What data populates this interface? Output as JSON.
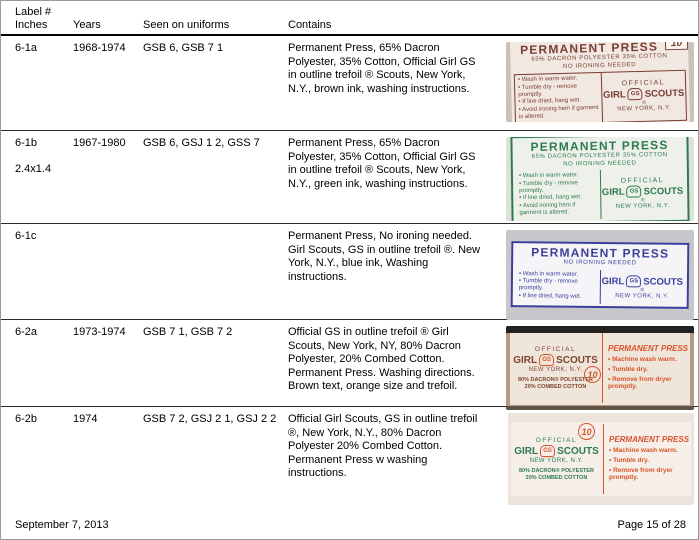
{
  "header": {
    "col_label_line1": "Label #",
    "col_label_line2": "Inches",
    "col_years": "Years",
    "col_uniforms": "Seen on uniforms",
    "col_contains": "Contains"
  },
  "rows": [
    {
      "label_id": "6-1a",
      "years": "1968-1974",
      "uniforms": "GSB 6, GSB 7 1",
      "contains": "Permanent Press, 65% Dacron Polyester, 35% Cotton, Official Girl GS in outline trefoil ® Scouts, New York, N.Y., brown ink, washing instructions.",
      "tag": {
        "ink": "#7a3c32",
        "label_bg": "#f1e8e1",
        "photo_bg": "#ccc1b8",
        "size_badge": "10",
        "title": "PERMANENT PRESS",
        "fiber_line": "65% DACRON POLYESTER 35% COTTON",
        "no_iron": "NO IRONING NEEDED",
        "bullets": [
          "Wash in warm water.",
          "Tumble dry - remove promptly.",
          "If line dried, hang wet.",
          "Avoid ironing hem if garment is altered."
        ],
        "official": "OFFICIAL",
        "girl": "GIRL",
        "gs": "GS",
        "scouts": "SCOUTS",
        "reg": "®",
        "city": "NEW YORK, N.Y."
      }
    },
    {
      "label_id": "6-1b",
      "inches": "2.4x1.4",
      "years": "1967-1980",
      "uniforms": "GSB 6, GSJ 1 2, GSS 7",
      "contains": "Permanent Press, 65% Dacron Polyester, 35% Cotton, Official Girl GS in outline trefoil ® Scouts, New York, N.Y., green ink, washing instructions.",
      "tag": {
        "ink": "#2e7a50",
        "label_bg": "#eef1ea",
        "photo_bg": "#dde2d8",
        "title": "PERMANENT PRESS",
        "fiber_line": "65% DACRON POLYESTER 35% COTTON",
        "no_iron": "NO IRONING NEEDED",
        "bullets": [
          "Wash in warm water.",
          "Tumble dry - remove promptly.",
          "If line dried, hang wet.",
          "Avoid ironing hem if garment is altered."
        ],
        "official": "OFFICIAL",
        "girl": "GIRL",
        "gs": "GS",
        "scouts": "SCOUTS",
        "reg": "®",
        "city": "NEW YORK, N.Y."
      }
    },
    {
      "label_id": "6-1c",
      "contains": "Permanent Press, No ironing needed. Girl Scouts, GS in outline trefoil ®. New York, N.Y., blue ink, Washing instructions.",
      "tag": {
        "ink": "#3b3f9c",
        "label_bg": "#f5f5f7",
        "photo_bg": "#c7c7cb",
        "title": "PERMANENT PRESS",
        "no_iron": "NO IRONING NEEDED",
        "bullets": [
          "Wash in warm water.",
          "Tumble dry - remove promptly.",
          "If line dried, hang wet."
        ],
        "girl": "GIRL",
        "gs": "GS",
        "scouts": "SCOUTS",
        "reg": "®",
        "city": "NEW YORK, N.Y."
      }
    },
    {
      "label_id": "6-2a",
      "years": "1973-1974",
      "uniforms": "GSB 7 1, GSB 7 2",
      "contains": "Official GS in outline trefoil ® Girl Scouts, New York, NY, 80% Dacron Polyester, 20% Combed Cotton. Permanent Press. Washing directions. Brown text, orange size and trefoil.",
      "tag": {
        "ink": "#7d442f",
        "accent": "#d8542b",
        "label_bg": "#f0e5da",
        "photo_bg": "#b29a85",
        "size_badge": "10",
        "official": "OFFICIAL",
        "girl": "GIRL",
        "gs": "GS",
        "scouts": "SCOUTS",
        "city": "NEW YORK, N.Y.",
        "fiber_line1": "80% DACRON® POLYESTER",
        "fiber_line2": "20% COMBED COTTON",
        "pp_title": "PERMANENT PRESS",
        "bullets": [
          "Machine wash warm.",
          "Tumble dry.",
          "Remove from dryer promptly."
        ]
      }
    },
    {
      "label_id": "6-2b",
      "years": "1974",
      "uniforms": "GSB 7 2, GSJ 2 1, GSJ 2 2",
      "contains": "Official Girl Scouts, GS in outline trefoil ®, New York, N.Y., 80% Dacron Polyester 20% Combed Cotton. Permanent Press w washing instructions.",
      "tag": {
        "ink": "#2c7a4e",
        "accent": "#d8542b",
        "label_bg": "#f6efe9",
        "photo_bg": "#ebe3dc",
        "size_badge": "10",
        "official": "OFFICIAL",
        "girl": "GIRL",
        "gs": "GS",
        "scouts": "SCOUTS",
        "city": "NEW YORK, N.Y.",
        "fiber_line1": "80% DACRON® POLYESTER",
        "fiber_line2": "20% COMBED COTTON",
        "pp_title": "PERMANENT PRESS",
        "bullets": [
          "Machine wash warm.",
          "Tumble dry.",
          "Remove from dryer promptly."
        ]
      }
    }
  ],
  "footer": {
    "date": "September 7, 2013",
    "page": "Page 15 of 28"
  }
}
